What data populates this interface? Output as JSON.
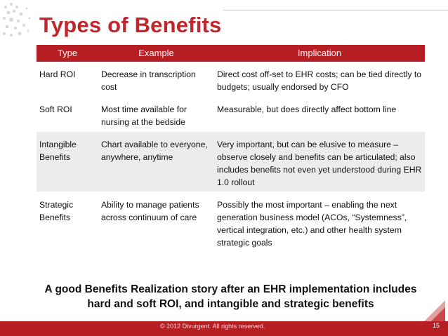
{
  "title": "Types of Benefits",
  "table": {
    "headers": [
      "Type",
      "Example",
      "Implication"
    ],
    "rows": [
      {
        "type": "Hard ROI",
        "example": "Decrease in transcription cost",
        "implication": "Direct cost off-set to EHR costs;  can be tied directly to budgets; usually endorsed by CFO"
      },
      {
        "type": "Soft ROI",
        "example": "Most time available for nursing at the bedside",
        "implication": "Measurable, but does directly affect bottom line"
      },
      {
        "type": "Intangible Benefits",
        "example": "Chart available to everyone, anywhere, anytime",
        "implication": "Very important, but can be elusive to measure – observe closely and benefits can be articulated; also includes benefits not even yet understood during EHR 1.0 rollout"
      },
      {
        "type": "Strategic Benefits",
        "example": "Ability to manage patients across continuum of care",
        "implication": "Possibly the most important – enabling the next generation business model (ACOs, “Systemness”, vertical integration, etc.) and other health system strategic goals"
      }
    ]
  },
  "summary": "A good Benefits Realization story after an EHR implementation includes hard and soft ROI, and intangible and strategic benefits",
  "footer": {
    "copyright": "© 2012 Divurgent. All rights reserved.",
    "page_number": "15"
  },
  "colors": {
    "accent": "#b51f24",
    "title": "#c0272d",
    "row_alt": "#ececec"
  }
}
